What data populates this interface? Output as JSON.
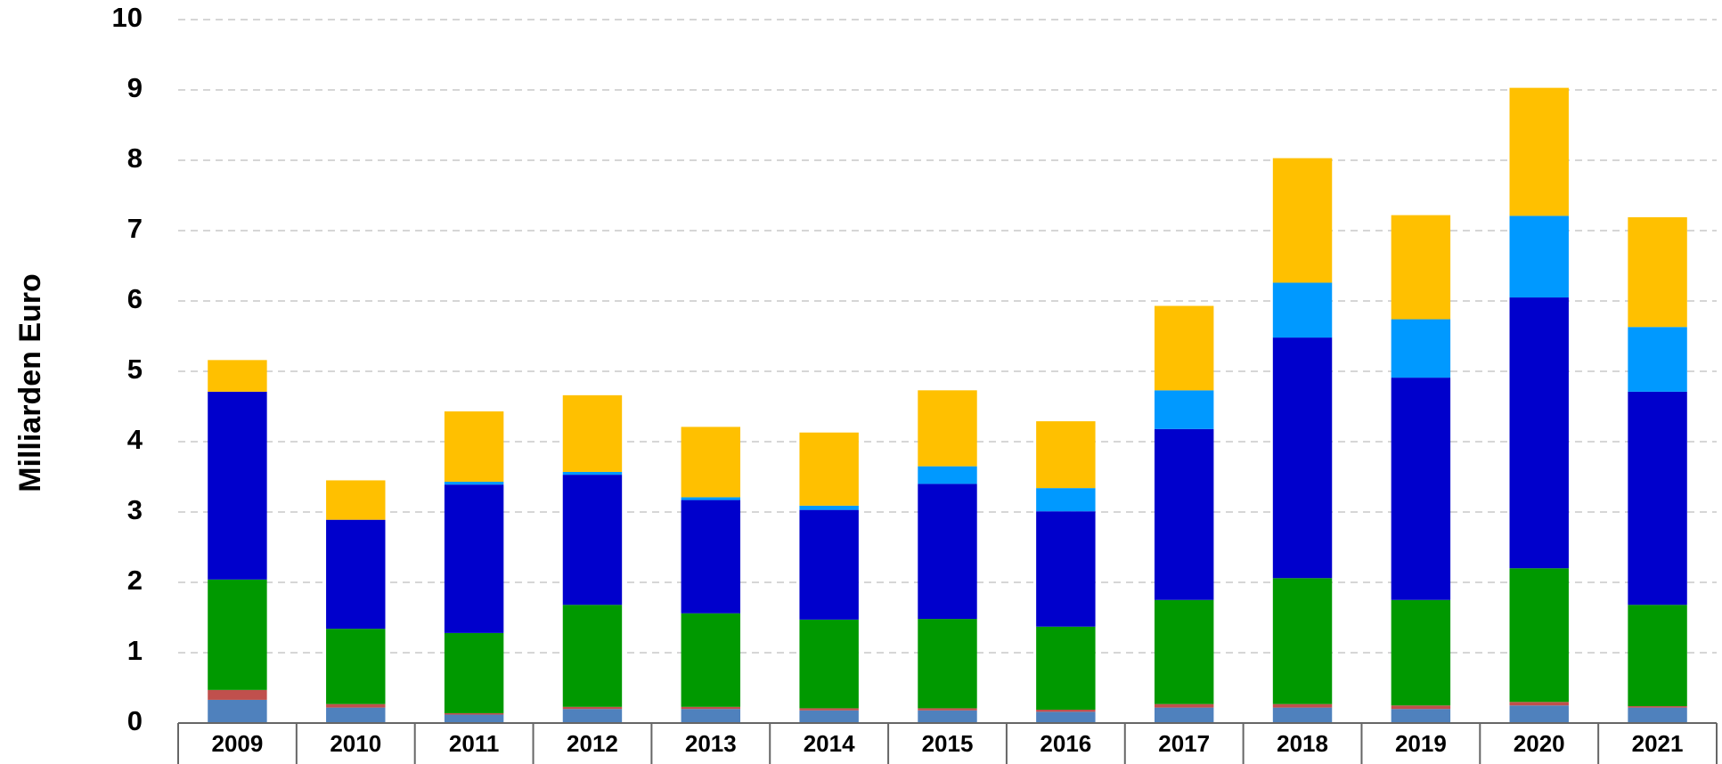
{
  "chart_data": {
    "type": "bar",
    "stacked": true,
    "ylabel": "Milliarden Euro",
    "categories": [
      "2009",
      "2010",
      "2011",
      "2012",
      "2013",
      "2014",
      "2015",
      "2016",
      "2017",
      "2018",
      "2019",
      "2020",
      "2021"
    ],
    "series": [
      {
        "color": "#4f81bd",
        "values": [
          0.33,
          0.22,
          0.12,
          0.2,
          0.2,
          0.18,
          0.18,
          0.16,
          0.22,
          0.22,
          0.2,
          0.25,
          0.22
        ]
      },
      {
        "color": "#c0504d",
        "values": [
          0.14,
          0.05,
          0.02,
          0.03,
          0.03,
          0.03,
          0.03,
          0.03,
          0.05,
          0.05,
          0.05,
          0.05,
          0.02
        ]
      },
      {
        "color": "#009900",
        "values": [
          1.57,
          1.07,
          1.14,
          1.45,
          1.33,
          1.26,
          1.27,
          1.18,
          1.48,
          1.79,
          1.5,
          1.9,
          1.44
        ]
      },
      {
        "color": "#0000cc",
        "values": [
          2.67,
          1.55,
          2.11,
          1.85,
          1.61,
          1.56,
          1.92,
          1.64,
          2.43,
          3.42,
          3.16,
          3.85,
          3.03
        ]
      },
      {
        "color": "#0099ff",
        "values": [
          0,
          0,
          0.04,
          0.04,
          0.04,
          0.06,
          0.25,
          0.33,
          0.55,
          0.78,
          0.83,
          1.16,
          0.92
        ]
      },
      {
        "color": "#ffc000",
        "values": [
          0.45,
          0.56,
          1.0,
          1.09,
          1.0,
          1.04,
          1.08,
          0.95,
          1.2,
          1.77,
          1.48,
          1.82,
          1.56
        ]
      }
    ],
    "ylim": [
      0,
      10
    ],
    "yticks": [
      0,
      1,
      2,
      3,
      4,
      5,
      6,
      7,
      8,
      9,
      10
    ],
    "grid": true
  }
}
